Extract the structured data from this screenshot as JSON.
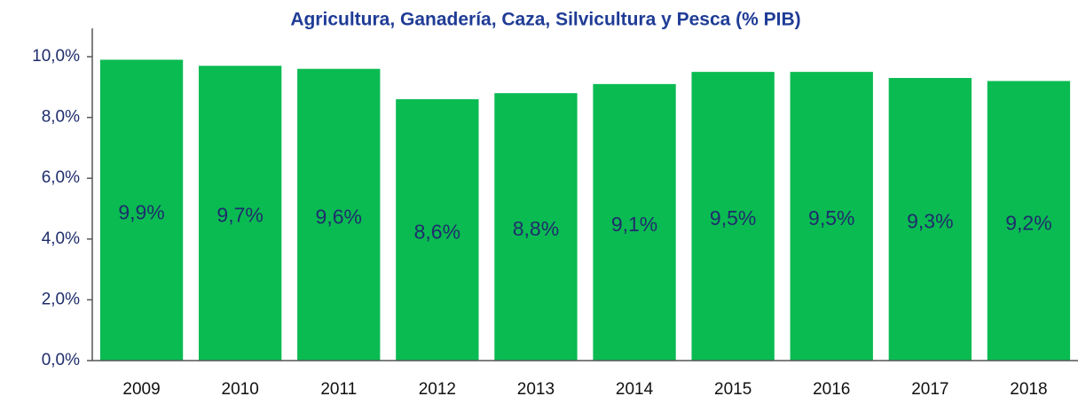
{
  "chart_data": {
    "type": "bar",
    "title": "Agricultura, Ganadería, Caza, Silvicultura y Pesca (% PIB)",
    "categories": [
      "2009",
      "2010",
      "2011",
      "2012",
      "2013",
      "2014",
      "2015",
      "2016",
      "2017",
      "2018"
    ],
    "values": [
      9.9,
      9.7,
      9.6,
      8.6,
      8.8,
      9.1,
      9.5,
      9.5,
      9.3,
      9.2
    ],
    "value_labels": [
      "9,9%",
      "9,7%",
      "9,6%",
      "8,6%",
      "8,8%",
      "9,1%",
      "9,5%",
      "9,5%",
      "9,3%",
      "9,2%"
    ],
    "color": "#0abb52",
    "ylim": [
      0,
      10
    ],
    "yticks": [
      {
        "value": 0,
        "label": "0,0%"
      },
      {
        "value": 2,
        "label": "2,0%"
      },
      {
        "value": 4,
        "label": "4,0%"
      },
      {
        "value": 6,
        "label": "6,0%"
      },
      {
        "value": 8,
        "label": "8,0%"
      },
      {
        "value": 10,
        "label": "10,0%"
      }
    ],
    "grid": false
  }
}
